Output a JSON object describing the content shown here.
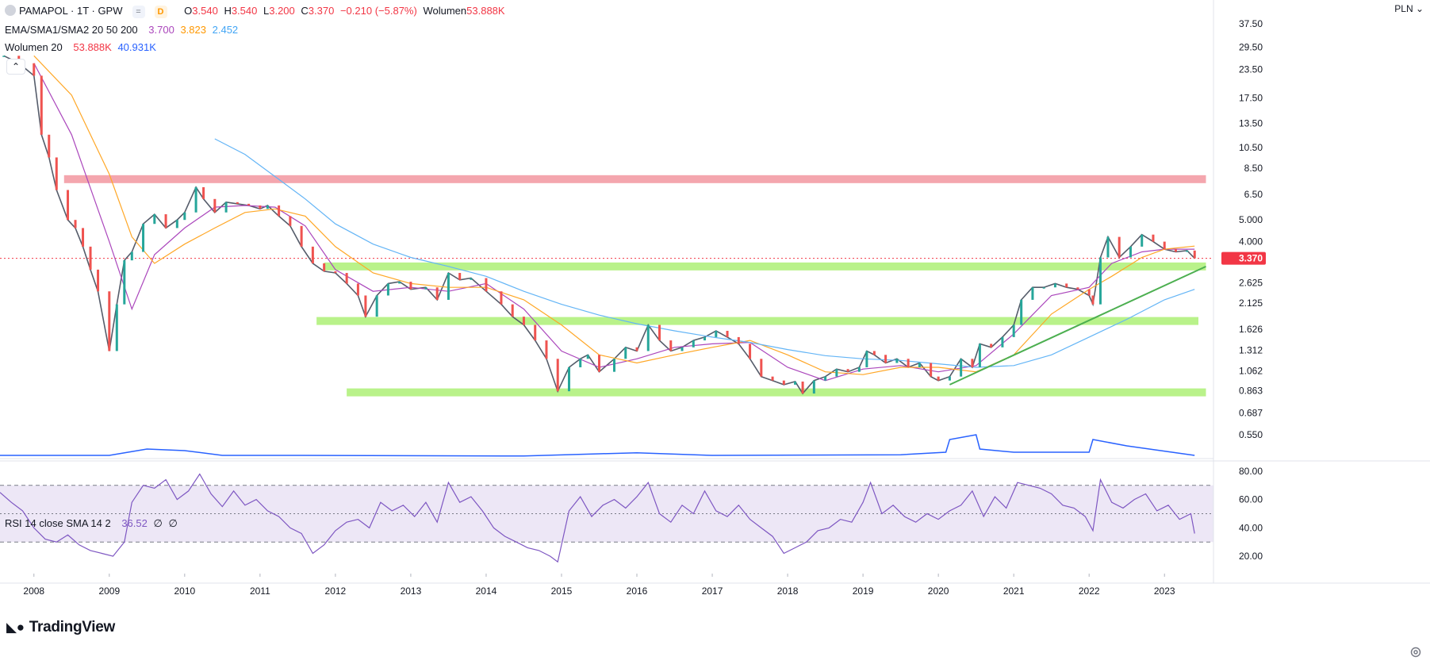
{
  "header": {
    "symbol": "PAMAPOL · 1T · GPW",
    "badge_d": "D",
    "badge_gray": "=",
    "o_label": "O",
    "o_value": "3.540",
    "h_label": "H",
    "h_value": "3.540",
    "l_label": "L",
    "l_value": "3.200",
    "c_label": "C",
    "c_value": "3.370",
    "change": "−0.210 (−5.87%)",
    "vol_label": "Wolumen",
    "vol_value": "53.888K"
  },
  "ema_legend": {
    "label": "EMA/SMA1/SMA2 20 50 200",
    "v1": "3.700",
    "v2": "3.823",
    "v3": "2.452"
  },
  "vol_legend": {
    "label": "Wolumen 20",
    "v1": "53.888K",
    "v2": "40.931K"
  },
  "rsi_legend": {
    "label": "RSI 14 close SMA 14 2",
    "v1": "36.52",
    "v2": "∅",
    "v3": "∅"
  },
  "currency": "PLN",
  "branding": "TradingView",
  "colors": {
    "candle_up": "#26a69a",
    "candle_down": "#ef5350",
    "ema": "#ab47bc",
    "sma1": "#ffa726",
    "sma2": "#64b5f6",
    "volume_ma": "#2962ff",
    "rsi": "#7e57c2",
    "rsi_band": "#ede7f6",
    "resistance": "#f4a6ae",
    "support": "#b9f28a",
    "trendline": "#4caf50",
    "price_tag": "#f23645"
  },
  "chart_data": [
    {
      "type": "line",
      "title": "PAMAPOL · 1T · GPW",
      "scale": "log",
      "ylim": [
        0.55,
        37.5
      ],
      "xlim": [
        2007.55,
        2023.65
      ],
      "x_ticks": [
        "2008",
        "2009",
        "2010",
        "2011",
        "2012",
        "2013",
        "2014",
        "2015",
        "2016",
        "2017",
        "2018",
        "2019",
        "2020",
        "2021",
        "2022",
        "2023"
      ],
      "y_ticks": [
        "37.50",
        "29.50",
        "23.50",
        "17.50",
        "13.50",
        "10.50",
        "8.50",
        "6.50",
        "5.000",
        "4.000",
        "2.625",
        "2.125",
        "1.626",
        "1.312",
        "1.062",
        "0.863",
        "0.687",
        "0.550"
      ],
      "last_price_tag": "3.370",
      "series": [
        {
          "name": "Close",
          "x": [
            2007.6,
            2007.8,
            2008.0,
            2008.1,
            2008.2,
            2008.3,
            2008.45,
            2008.55,
            2008.65,
            2008.75,
            2008.85,
            2009.0,
            2009.1,
            2009.2,
            2009.3,
            2009.45,
            2009.6,
            2009.75,
            2009.9,
            2010.0,
            2010.15,
            2010.25,
            2010.4,
            2010.55,
            2010.7,
            2010.85,
            2011.0,
            2011.1,
            2011.25,
            2011.4,
            2011.55,
            2011.7,
            2011.85,
            2012.0,
            2012.15,
            2012.3,
            2012.4,
            2012.55,
            2012.7,
            2012.85,
            2013.0,
            2013.2,
            2013.35,
            2013.5,
            2013.65,
            2013.8,
            2014.0,
            2014.2,
            2014.35,
            2014.5,
            2014.65,
            2014.8,
            2014.95,
            2015.1,
            2015.25,
            2015.35,
            2015.5,
            2015.7,
            2015.85,
            2016.0,
            2016.15,
            2016.3,
            2016.45,
            2016.6,
            2016.75,
            2016.9,
            2017.05,
            2017.2,
            2017.35,
            2017.5,
            2017.65,
            2017.8,
            2017.95,
            2018.1,
            2018.2,
            2018.35,
            2018.5,
            2018.65,
            2018.8,
            2018.95,
            2019.05,
            2019.15,
            2019.3,
            2019.45,
            2019.6,
            2019.75,
            2019.9,
            2020.0,
            2020.15,
            2020.3,
            2020.45,
            2020.55,
            2020.7,
            2020.85,
            2021.0,
            2021.1,
            2021.25,
            2021.4,
            2021.55,
            2021.7,
            2021.85,
            2022.0,
            2022.05,
            2022.15,
            2022.25,
            2022.4,
            2022.55,
            2022.7,
            2022.85,
            2023.0,
            2023.15,
            2023.3,
            2023.4
          ],
          "values": [
            27,
            25,
            22,
            12,
            9.5,
            6.8,
            5.0,
            4.6,
            3.8,
            3.0,
            2.4,
            1.3,
            2.1,
            3.3,
            3.6,
            4.8,
            5.3,
            4.6,
            5.0,
            5.4,
            7.0,
            6.2,
            5.4,
            6.0,
            5.9,
            5.8,
            5.6,
            5.8,
            5.2,
            4.7,
            3.8,
            3.2,
            2.95,
            2.9,
            2.6,
            2.3,
            1.85,
            2.3,
            2.6,
            2.65,
            2.45,
            2.5,
            2.2,
            2.9,
            2.7,
            2.75,
            2.4,
            2.1,
            1.85,
            1.7,
            1.45,
            1.2,
            0.86,
            1.1,
            1.2,
            1.25,
            1.05,
            1.2,
            1.35,
            1.3,
            1.7,
            1.45,
            1.3,
            1.35,
            1.45,
            1.5,
            1.6,
            1.5,
            1.4,
            1.2,
            1.0,
            0.96,
            0.92,
            0.95,
            0.84,
            0.96,
            1.0,
            1.08,
            1.05,
            1.1,
            1.3,
            1.25,
            1.15,
            1.2,
            1.1,
            1.15,
            1.0,
            0.96,
            1.0,
            1.2,
            1.1,
            1.4,
            1.35,
            1.5,
            1.7,
            2.2,
            2.5,
            2.5,
            2.6,
            2.5,
            2.45,
            2.3,
            2.1,
            3.4,
            4.2,
            3.4,
            3.8,
            4.3,
            4.0,
            3.7,
            3.6,
            3.65,
            3.37
          ]
        },
        {
          "name": "EMA",
          "x": [
            2008.0,
            2008.5,
            2009.0,
            2009.3,
            2009.6,
            2010.0,
            2010.4,
            2010.8,
            2011.2,
            2011.6,
            2012.0,
            2012.5,
            2013.0,
            2013.5,
            2014.0,
            2014.5,
            2015.0,
            2015.5,
            2016.0,
            2016.5,
            2017.0,
            2017.5,
            2018.0,
            2018.5,
            2019.0,
            2019.5,
            2020.0,
            2020.5,
            2021.0,
            2021.5,
            2022.0,
            2022.3,
            2022.7,
            2023.0,
            2023.4
          ],
          "values": [
            25,
            12,
            4.0,
            2.0,
            3.5,
            4.6,
            5.7,
            5.8,
            5.7,
            4.7,
            3.0,
            2.4,
            2.5,
            2.4,
            2.6,
            2.0,
            1.3,
            1.1,
            1.2,
            1.35,
            1.4,
            1.42,
            1.1,
            0.96,
            1.08,
            1.12,
            1.05,
            1.12,
            1.55,
            2.3,
            2.5,
            3.2,
            3.6,
            3.7,
            3.7
          ]
        },
        {
          "name": "SMA1",
          "x": [
            2008.0,
            2008.5,
            2009.0,
            2009.3,
            2009.6,
            2010.0,
            2010.4,
            2010.8,
            2011.2,
            2011.6,
            2012.0,
            2012.5,
            2013.0,
            2013.5,
            2014.0,
            2014.5,
            2015.0,
            2015.5,
            2016.0,
            2016.5,
            2017.0,
            2017.5,
            2018.0,
            2018.5,
            2019.0,
            2019.5,
            2020.0,
            2020.5,
            2021.0,
            2021.5,
            2022.0,
            2022.3,
            2022.7,
            2023.0,
            2023.4
          ],
          "values": [
            27,
            18,
            8.0,
            4.2,
            3.2,
            3.9,
            4.6,
            5.4,
            5.6,
            5.2,
            3.8,
            2.9,
            2.6,
            2.5,
            2.5,
            2.2,
            1.7,
            1.25,
            1.15,
            1.25,
            1.35,
            1.45,
            1.25,
            1.05,
            1.02,
            1.1,
            1.1,
            1.05,
            1.25,
            1.9,
            2.45,
            2.8,
            3.4,
            3.7,
            3.82
          ]
        },
        {
          "name": "SMA2",
          "x": [
            2010.4,
            2010.8,
            2011.2,
            2011.6,
            2012.0,
            2012.5,
            2013.0,
            2013.5,
            2014.0,
            2014.5,
            2015.0,
            2015.5,
            2016.0,
            2016.5,
            2017.0,
            2017.5,
            2018.0,
            2018.5,
            2019.0,
            2019.5,
            2020.0,
            2020.5,
            2021.0,
            2021.5,
            2022.0,
            2022.5,
            2023.0,
            2023.4
          ],
          "values": [
            11.5,
            9.8,
            7.8,
            6.2,
            4.8,
            3.9,
            3.4,
            3.1,
            2.8,
            2.4,
            2.1,
            1.88,
            1.72,
            1.6,
            1.5,
            1.42,
            1.32,
            1.24,
            1.2,
            1.18,
            1.14,
            1.1,
            1.12,
            1.25,
            1.5,
            1.8,
            2.2,
            2.45
          ]
        }
      ],
      "levels": [
        {
          "name": "resistance",
          "value": 7.6,
          "x": [
            2008.4,
            2023.55
          ]
        },
        {
          "name": "support",
          "value": 3.1,
          "x": [
            2011.85,
            2023.55
          ]
        },
        {
          "name": "support",
          "value": 1.77,
          "x": [
            2011.75,
            2023.45
          ]
        },
        {
          "name": "support",
          "value": 0.85,
          "x": [
            2012.15,
            2023.55
          ]
        }
      ],
      "trendline": {
        "x": [
          2020.15,
          2023.55
        ],
        "values": [
          0.92,
          3.1
        ]
      }
    },
    {
      "type": "line",
      "title": "Wolumen 20",
      "series": [
        {
          "name": "Volume MA",
          "x": [
            2007.55,
            2009.0,
            2009.5,
            2010.0,
            2010.5,
            2011.5,
            2014.5,
            2015.5,
            2016.0,
            2017.0,
            2019.5,
            2020.1,
            2020.15,
            2020.5,
            2020.55,
            2021.0,
            2022.0,
            2022.05,
            2022.5,
            2023.4
          ],
          "values": [
            0.1,
            0.1,
            0.3,
            0.25,
            0.1,
            0.1,
            0.08,
            0.15,
            0.18,
            0.1,
            0.12,
            0.2,
            0.6,
            0.75,
            0.3,
            0.2,
            0.2,
            0.6,
            0.4,
            0.1
          ]
        }
      ]
    },
    {
      "type": "line",
      "title": "RSI 14 close SMA 14 2",
      "ylim": [
        15,
        85
      ],
      "y_ticks": [
        "80.00",
        "60.00",
        "40.00",
        "20.00"
      ],
      "bands": [
        30,
        50,
        70
      ],
      "series": [
        {
          "name": "RSI",
          "x": [
            2007.55,
            2007.7,
            2007.85,
            2008.0,
            2008.15,
            2008.3,
            2008.45,
            2008.6,
            2008.75,
            2008.9,
            2009.05,
            2009.2,
            2009.3,
            2009.45,
            2009.6,
            2009.75,
            2009.9,
            2010.05,
            2010.2,
            2010.35,
            2010.5,
            2010.65,
            2010.8,
            2010.95,
            2011.1,
            2011.25,
            2011.4,
            2011.55,
            2011.7,
            2011.85,
            2012.0,
            2012.15,
            2012.3,
            2012.45,
            2012.6,
            2012.75,
            2012.9,
            2013.05,
            2013.2,
            2013.35,
            2013.5,
            2013.65,
            2013.8,
            2013.95,
            2014.1,
            2014.25,
            2014.4,
            2014.55,
            2014.7,
            2014.85,
            2014.95,
            2015.1,
            2015.25,
            2015.4,
            2015.55,
            2015.7,
            2015.85,
            2016.0,
            2016.15,
            2016.3,
            2016.45,
            2016.6,
            2016.75,
            2016.9,
            2017.05,
            2017.2,
            2017.35,
            2017.5,
            2017.65,
            2017.8,
            2017.95,
            2018.1,
            2018.25,
            2018.4,
            2018.55,
            2018.7,
            2018.85,
            2019.0,
            2019.1,
            2019.25,
            2019.4,
            2019.55,
            2019.7,
            2019.85,
            2020.0,
            2020.15,
            2020.3,
            2020.45,
            2020.6,
            2020.75,
            2020.9,
            2021.05,
            2021.2,
            2021.35,
            2021.5,
            2021.65,
            2021.8,
            2021.95,
            2022.05,
            2022.15,
            2022.3,
            2022.45,
            2022.6,
            2022.75,
            2022.9,
            2023.05,
            2023.2,
            2023.35,
            2023.4
          ],
          "values": [
            65,
            58,
            52,
            40,
            32,
            30,
            35,
            28,
            24,
            22,
            20,
            30,
            58,
            70,
            68,
            74,
            60,
            66,
            78,
            64,
            55,
            66,
            56,
            60,
            52,
            48,
            40,
            36,
            22,
            28,
            38,
            44,
            46,
            40,
            58,
            52,
            56,
            48,
            58,
            44,
            72,
            58,
            62,
            52,
            40,
            34,
            30,
            26,
            24,
            20,
            16,
            52,
            62,
            48,
            56,
            60,
            54,
            62,
            72,
            50,
            44,
            56,
            50,
            66,
            52,
            48,
            56,
            46,
            40,
            34,
            22,
            26,
            30,
            38,
            40,
            46,
            44,
            58,
            72,
            50,
            56,
            48,
            44,
            50,
            46,
            52,
            56,
            66,
            48,
            62,
            54,
            72,
            70,
            68,
            64,
            56,
            54,
            48,
            38,
            74,
            58,
            54,
            60,
            64,
            52,
            56,
            46,
            50,
            36
          ]
        }
      ]
    }
  ]
}
